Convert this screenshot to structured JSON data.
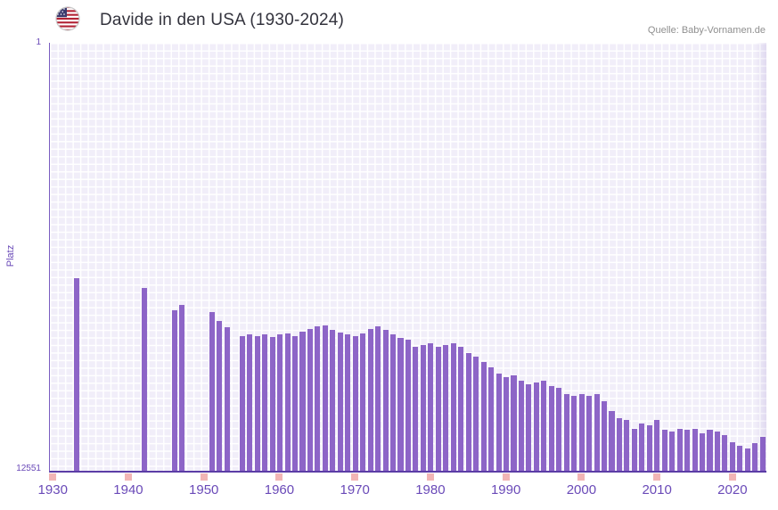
{
  "header": {
    "title": "Davide in den USA (1930-2024)",
    "flag_icon": "us-flag-icon",
    "source": "Quelle: Baby-Vornamen.de"
  },
  "y_axis": {
    "title": "Platz",
    "top_label": "1",
    "bottom_label": "12551"
  },
  "x_axis": {
    "tick_labels": [
      "1930",
      "1940",
      "1950",
      "1960",
      "1970",
      "1980",
      "1990",
      "2000",
      "2010",
      "2020"
    ]
  },
  "colors": {
    "bar": "#8d65c7",
    "axis_line": "#5b3da6",
    "axis_text": "#6a4ab8",
    "plot_bg": "#f1eef9",
    "grid_line": "#ffffff",
    "tick_marker": "#f2b5b5",
    "title_text": "#33333d",
    "source_text": "#8f8f8f"
  },
  "chart_data": {
    "type": "bar",
    "title": "Davide in den USA (1930-2024)",
    "xlabel": "",
    "ylabel": "Platz",
    "ylim": [
      1,
      12551
    ],
    "y_inverted": true,
    "grid": true,
    "start_year": 1930,
    "end_year": 2024,
    "tick_years": [
      1930,
      1940,
      1950,
      1960,
      1970,
      1980,
      1990,
      2000,
      2010,
      2020
    ],
    "note": "values are name ranks; smaller rank = taller bar; null = no data that year",
    "values": [
      null,
      null,
      null,
      6900,
      null,
      null,
      null,
      null,
      null,
      null,
      null,
      null,
      7200,
      null,
      null,
      null,
      7850,
      7700,
      null,
      null,
      null,
      7900,
      8150,
      8350,
      null,
      8600,
      8560,
      8590,
      8550,
      8630,
      8560,
      8530,
      8590,
      8480,
      8400,
      8310,
      8290,
      8430,
      8500,
      8560,
      8590,
      8530,
      8390,
      8310,
      8410,
      8560,
      8660,
      8710,
      8910,
      8860,
      8810,
      8910,
      8860,
      8810,
      8910,
      9110,
      9210,
      9360,
      9510,
      9710,
      9810,
      9760,
      9910,
      10010,
      9960,
      9910,
      10060,
      10110,
      10310,
      10360,
      10310,
      10360,
      10310,
      10510,
      10810,
      11010,
      11060,
      11310,
      11160,
      11210,
      11060,
      11360,
      11410,
      11310,
      11360,
      11310,
      11460,
      11360,
      11410,
      11510,
      11710,
      11810,
      11900,
      11750,
      11550
    ]
  }
}
